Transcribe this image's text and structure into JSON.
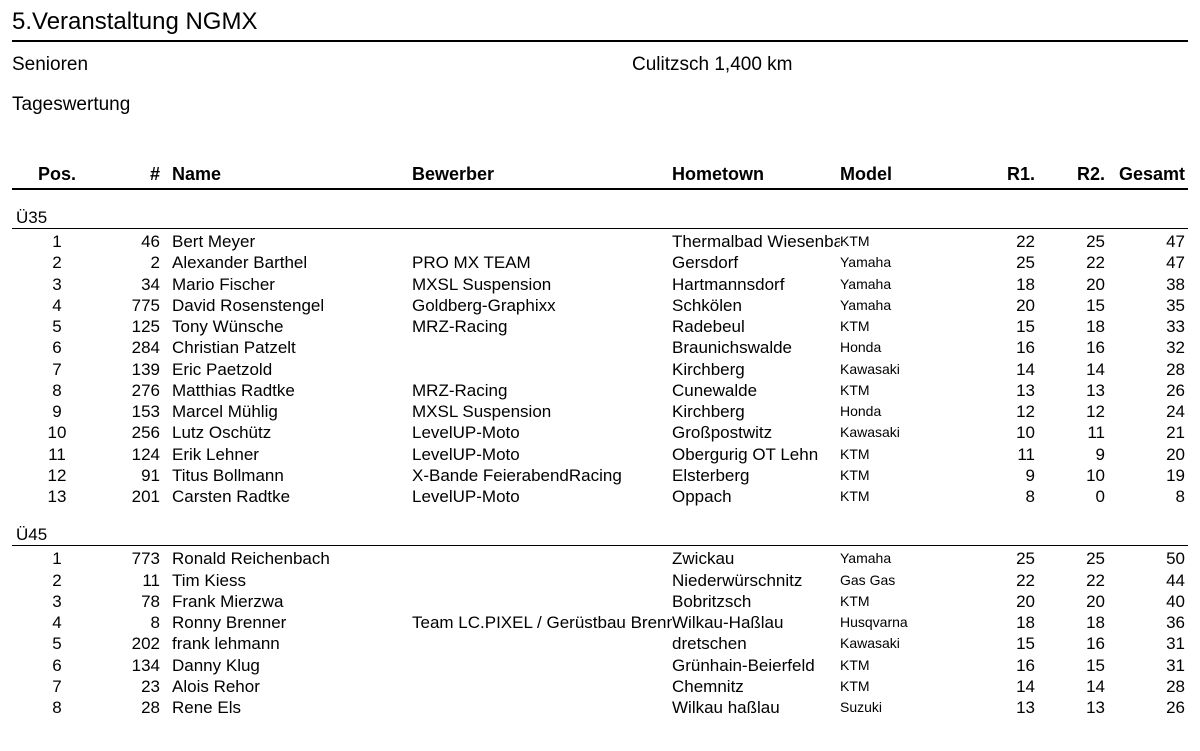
{
  "header": {
    "event_title": "5.Veranstaltung NGMX",
    "category": "Senioren",
    "track": "Culitzsch 1,400 km",
    "scoring": "Tageswertung"
  },
  "columns": {
    "pos": "Pos.",
    "num": "#",
    "name": "Name",
    "entrant": "Bewerber",
    "hometown": "Hometown",
    "model": "Model",
    "r1": "R1.",
    "r2": "R2.",
    "total": "Gesamt"
  },
  "groups": [
    {
      "label": "Ü35",
      "rows": [
        {
          "pos": 1,
          "num": 46,
          "name": "Bert Meyer",
          "entrant": "",
          "hometown": "Thermalbad Wiesenba",
          "model": "KTM",
          "r1": 22,
          "r2": 25,
          "total": 47
        },
        {
          "pos": 2,
          "num": 2,
          "name": "Alexander Barthel",
          "entrant": "PRO MX TEAM",
          "hometown": "Gersdorf",
          "model": "Yamaha",
          "r1": 25,
          "r2": 22,
          "total": 47
        },
        {
          "pos": 3,
          "num": 34,
          "name": "Mario Fischer",
          "entrant": "MXSL Suspension",
          "hometown": "Hartmannsdorf",
          "model": "Yamaha",
          "r1": 18,
          "r2": 20,
          "total": 38
        },
        {
          "pos": 4,
          "num": 775,
          "name": "David Rosenstengel",
          "entrant": "Goldberg-Graphixx",
          "hometown": "Schkölen",
          "model": "Yamaha",
          "r1": 20,
          "r2": 15,
          "total": 35
        },
        {
          "pos": 5,
          "num": 125,
          "name": "Tony Wünsche",
          "entrant": "MRZ-Racing",
          "hometown": "Radebeul",
          "model": "KTM",
          "r1": 15,
          "r2": 18,
          "total": 33
        },
        {
          "pos": 6,
          "num": 284,
          "name": "Christian Patzelt",
          "entrant": "",
          "hometown": "Braunichswalde",
          "model": "Honda",
          "r1": 16,
          "r2": 16,
          "total": 32
        },
        {
          "pos": 7,
          "num": 139,
          "name": "Eric Paetzold",
          "entrant": "",
          "hometown": "Kirchberg",
          "model": "Kawasaki",
          "r1": 14,
          "r2": 14,
          "total": 28
        },
        {
          "pos": 8,
          "num": 276,
          "name": "Matthias Radtke",
          "entrant": "MRZ-Racing",
          "hometown": "Cunewalde",
          "model": "KTM",
          "r1": 13,
          "r2": 13,
          "total": 26
        },
        {
          "pos": 9,
          "num": 153,
          "name": "Marcel Mühlig",
          "entrant": "MXSL Suspension",
          "hometown": "Kirchberg",
          "model": "Honda",
          "r1": 12,
          "r2": 12,
          "total": 24
        },
        {
          "pos": 10,
          "num": 256,
          "name": "Lutz Oschütz",
          "entrant": "LevelUP-Moto",
          "hometown": "Großpostwitz",
          "model": "Kawasaki",
          "r1": 10,
          "r2": 11,
          "total": 21
        },
        {
          "pos": 11,
          "num": 124,
          "name": "Erik Lehner",
          "entrant": "LevelUP-Moto",
          "hometown": "Obergurig OT Lehn",
          "model": "KTM",
          "r1": 11,
          "r2": 9,
          "total": 20
        },
        {
          "pos": 12,
          "num": 91,
          "name": "Titus Bollmann",
          "entrant": "X-Bande FeierabendRacing",
          "hometown": "Elsterberg",
          "model": "KTM",
          "r1": 9,
          "r2": 10,
          "total": 19
        },
        {
          "pos": 13,
          "num": 201,
          "name": "Carsten Radtke",
          "entrant": "LevelUP-Moto",
          "hometown": "Oppach",
          "model": "KTM",
          "r1": 8,
          "r2": 0,
          "total": 8
        }
      ]
    },
    {
      "label": "Ü45",
      "rows": [
        {
          "pos": 1,
          "num": 773,
          "name": "Ronald Reichenbach",
          "entrant": "",
          "hometown": "Zwickau",
          "model": "Yamaha",
          "r1": 25,
          "r2": 25,
          "total": 50
        },
        {
          "pos": 2,
          "num": 11,
          "name": "Tim Kiess",
          "entrant": "",
          "hometown": "Niederwürschnitz",
          "model": "Gas Gas",
          "r1": 22,
          "r2": 22,
          "total": 44
        },
        {
          "pos": 3,
          "num": 78,
          "name": "Frank Mierzwa",
          "entrant": "",
          "hometown": "Bobritzsch",
          "model": "KTM",
          "r1": 20,
          "r2": 20,
          "total": 40
        },
        {
          "pos": 4,
          "num": 8,
          "name": "Ronny Brenner",
          "entrant": "Team LC.PIXEL / Gerüstbau Brenne",
          "hometown": "Wilkau-Haßlau",
          "model": "Husqvarna",
          "r1": 18,
          "r2": 18,
          "total": 36
        },
        {
          "pos": 5,
          "num": 202,
          "name": "frank lehmann",
          "entrant": "",
          "hometown": "dretschen",
          "model": "Kawasaki",
          "r1": 15,
          "r2": 16,
          "total": 31
        },
        {
          "pos": 6,
          "num": 134,
          "name": "Danny Klug",
          "entrant": "",
          "hometown": "Grünhain-Beierfeld",
          "model": "KTM",
          "r1": 16,
          "r2": 15,
          "total": 31
        },
        {
          "pos": 7,
          "num": 23,
          "name": "Alois Rehor",
          "entrant": "",
          "hometown": "Chemnitz",
          "model": "KTM",
          "r1": 14,
          "r2": 14,
          "total": 28
        },
        {
          "pos": 8,
          "num": 28,
          "name": "Rene Els",
          "entrant": "",
          "hometown": "Wilkau haßlau",
          "model": "Suzuki",
          "r1": 13,
          "r2": 13,
          "total": 26
        }
      ]
    }
  ],
  "style": {
    "font_family": "Arial, Helvetica, sans-serif",
    "title_fontsize": 24,
    "header_fontsize": 19,
    "colhead_fontsize": 18,
    "row_fontsize": 17,
    "model_fontsize": 14,
    "text_color": "#000000",
    "background": "#ffffff",
    "rule_color": "#000000"
  }
}
